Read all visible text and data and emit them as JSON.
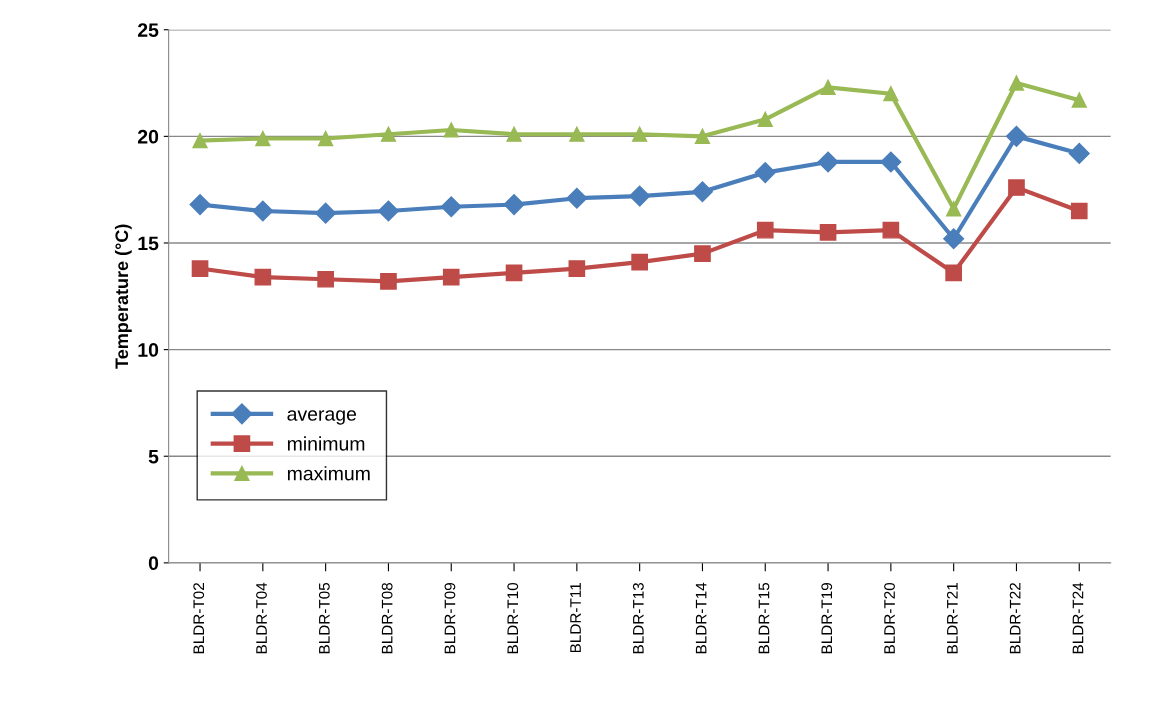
{
  "chart_data": {
    "type": "line",
    "ylabel": "Temperature (°C)",
    "categories": [
      "BLDR-T02",
      "BLDR-T04",
      "BLDR-T05",
      "BLDR-T08",
      "BLDR-T09",
      "BLDR-T10",
      "BLDR-T11",
      "BLDR-T13",
      "BLDR-T14",
      "BLDR-T15",
      "BLDR-T19",
      "BLDR-T20",
      "BLDR-T21",
      "BLDR-T22",
      "BLDR-T24"
    ],
    "series": [
      {
        "name": "average",
        "color": "#4a7ebb",
        "marker": "diamond",
        "values": [
          16.8,
          16.5,
          16.4,
          16.5,
          16.7,
          16.8,
          17.1,
          17.2,
          17.4,
          18.3,
          18.8,
          18.8,
          15.2,
          20.0,
          19.2
        ]
      },
      {
        "name": "minimum",
        "color": "#be4b48",
        "marker": "square",
        "values": [
          13.8,
          13.4,
          13.3,
          13.2,
          13.4,
          13.6,
          13.8,
          14.1,
          14.5,
          15.6,
          15.5,
          15.6,
          13.6,
          17.6,
          16.5
        ]
      },
      {
        "name": "maximum",
        "color": "#98b954",
        "marker": "triangle",
        "values": [
          19.8,
          19.9,
          19.9,
          20.1,
          20.3,
          20.1,
          20.1,
          20.1,
          20.0,
          20.8,
          22.3,
          22.0,
          16.6,
          22.5,
          21.7
        ]
      }
    ],
    "ylim": [
      0,
      25
    ],
    "yticks": [
      0,
      5,
      10,
      15,
      20,
      25
    ],
    "grid": "y",
    "legend": "bottom left",
    "line_style": "solid"
  }
}
